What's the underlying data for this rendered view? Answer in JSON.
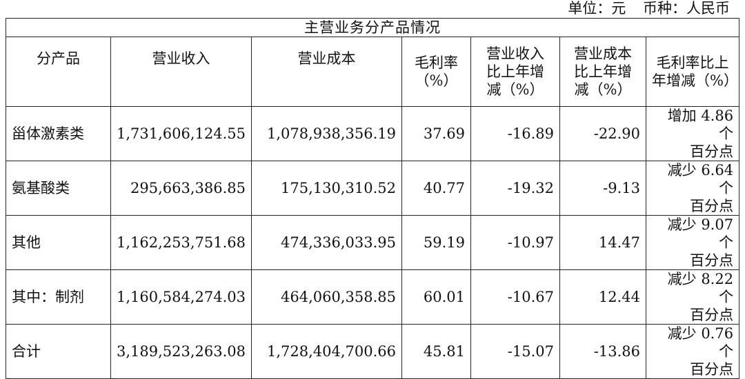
{
  "unit_line": {
    "unit": "单位：元",
    "currency": "币种：人民币"
  },
  "table": {
    "title": "主营业务分产品情况",
    "headers": {
      "product": "分产品",
      "revenue": "营业收入",
      "cost": "营业成本",
      "margin": [
        "毛利率",
        "（%）"
      ],
      "revenue_change": [
        "营业收入",
        "比上年增",
        "减（%）"
      ],
      "cost_change": [
        "营业成本",
        "比上年增",
        "减（%）"
      ],
      "margin_change": [
        "毛利率比上",
        "年增减（%）"
      ]
    },
    "rows": [
      {
        "product": "甾体激素类",
        "revenue": "1,731,606,124.55",
        "cost": "1,078,938,356.19",
        "margin": "37.69",
        "revenue_change": "-16.89",
        "cost_change": "-22.90",
        "margin_change": [
          "增加 4.86 个",
          "百分点"
        ]
      },
      {
        "product": "氨基酸类",
        "revenue": "295,663,386.85",
        "cost": "175,130,310.52",
        "margin": "40.77",
        "revenue_change": "-19.32",
        "cost_change": "-9.13",
        "margin_change": [
          "减少 6.64 个",
          "百分点"
        ]
      },
      {
        "product": "其他",
        "revenue": "1,162,253,751.68",
        "cost": "474,336,033.95",
        "margin": "59.19",
        "revenue_change": "-10.97",
        "cost_change": "14.47",
        "margin_change": [
          "减少 9.07 个",
          "百分点"
        ]
      },
      {
        "product": "其中：制剂",
        "revenue": "1,160,584,274.03",
        "cost": "464,060,358.85",
        "margin": "60.01",
        "revenue_change": "-10.67",
        "cost_change": "12.44",
        "margin_change": [
          "减少 8.22 个",
          "百分点"
        ]
      },
      {
        "product": "合计",
        "revenue": "3,189,523,263.08",
        "cost": "1,728,404,700.66",
        "margin": "45.81",
        "revenue_change": "-15.07",
        "cost_change": "-13.86",
        "margin_change": [
          "减少 0.76 个",
          "百分点"
        ]
      }
    ]
  }
}
